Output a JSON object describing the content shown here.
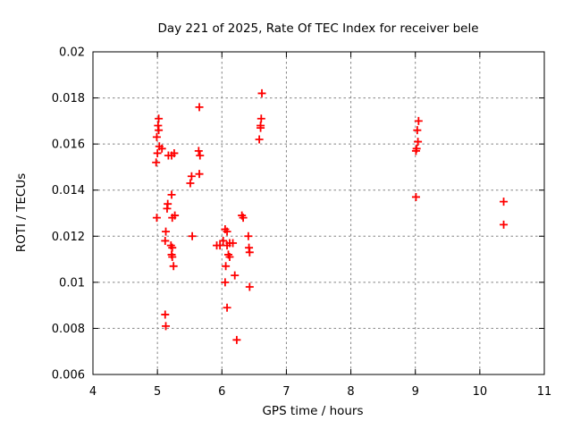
{
  "page": {
    "background_color": "#ffffff",
    "text_color": "#000000"
  },
  "chart_data": {
    "type": "scatter",
    "title": "Day 221 of 2025, Rate Of TEC Index for receiver bele",
    "xlabel": "GPS time / hours",
    "ylabel": "ROTI / TECUs",
    "xlim": [
      4,
      11
    ],
    "ylim": [
      0.006,
      0.02
    ],
    "xticks": [
      4,
      5,
      6,
      7,
      8,
      9,
      10,
      11
    ],
    "xtick_labels": [
      "4",
      "5",
      "6",
      "7",
      "8",
      "9",
      "10",
      "11"
    ],
    "yticks": [
      0.006,
      0.008,
      0.01,
      0.012,
      0.014,
      0.016,
      0.018,
      0.02
    ],
    "ytick_labels": [
      "0.006",
      "0.008",
      "0.01",
      "0.012",
      "0.014",
      "0.016",
      "0.018",
      "0.02"
    ],
    "grid": true,
    "grid_style": "dashed",
    "legend_position": "none",
    "marker_shape": "plus",
    "marker_color": "#ff0000",
    "grid_color": "#848484",
    "frame_color": "#000000",
    "series": [
      {
        "name": "ROTI",
        "points": [
          [
            5.02,
            0.0171
          ],
          [
            5.01,
            0.0168
          ],
          [
            5.02,
            0.0166
          ],
          [
            4.99,
            0.0163
          ],
          [
            5.03,
            0.0159
          ],
          [
            5.07,
            0.0158
          ],
          [
            5.0,
            0.0156
          ],
          [
            4.98,
            0.0152
          ],
          [
            5.17,
            0.0155
          ],
          [
            5.22,
            0.0155
          ],
          [
            5.26,
            0.0156
          ],
          [
            5.65,
            0.0176
          ],
          [
            5.64,
            0.0157
          ],
          [
            5.66,
            0.0155
          ],
          [
            5.53,
            0.0146
          ],
          [
            5.65,
            0.0147
          ],
          [
            5.51,
            0.0143
          ],
          [
            5.54,
            0.012
          ],
          [
            5.22,
            0.0138
          ],
          [
            5.16,
            0.0134
          ],
          [
            5.15,
            0.0132
          ],
          [
            4.99,
            0.0128
          ],
          [
            5.23,
            0.0128
          ],
          [
            5.27,
            0.0129
          ],
          [
            5.13,
            0.0122
          ],
          [
            5.12,
            0.0118
          ],
          [
            5.21,
            0.0116
          ],
          [
            5.23,
            0.0115
          ],
          [
            5.22,
            0.0112
          ],
          [
            5.23,
            0.0111
          ],
          [
            5.25,
            0.0107
          ],
          [
            5.12,
            0.0086
          ],
          [
            5.13,
            0.0081
          ],
          [
            5.92,
            0.0116
          ],
          [
            5.97,
            0.0116
          ],
          [
            6.05,
            0.0123
          ],
          [
            6.08,
            0.0122
          ],
          [
            6.02,
            0.0118
          ],
          [
            6.12,
            0.0117
          ],
          [
            6.17,
            0.0117
          ],
          [
            6.08,
            0.0116
          ],
          [
            6.1,
            0.0112
          ],
          [
            6.12,
            0.0111
          ],
          [
            6.06,
            0.0107
          ],
          [
            6.05,
            0.01
          ],
          [
            6.2,
            0.0103
          ],
          [
            6.08,
            0.0089
          ],
          [
            6.23,
            0.0075
          ],
          [
            6.31,
            0.0129
          ],
          [
            6.33,
            0.0128
          ],
          [
            6.41,
            0.012
          ],
          [
            6.42,
            0.0115
          ],
          [
            6.43,
            0.0113
          ],
          [
            6.43,
            0.0098
          ],
          [
            6.62,
            0.0182
          ],
          [
            6.61,
            0.0171
          ],
          [
            6.6,
            0.0168
          ],
          [
            6.6,
            0.0167
          ],
          [
            6.58,
            0.0162
          ],
          [
            9.05,
            0.017
          ],
          [
            9.03,
            0.0166
          ],
          [
            9.04,
            0.0161
          ],
          [
            9.02,
            0.0158
          ],
          [
            9.01,
            0.0157
          ],
          [
            9.01,
            0.0137
          ],
          [
            10.37,
            0.0135
          ],
          [
            10.37,
            0.0125
          ]
        ]
      }
    ]
  }
}
